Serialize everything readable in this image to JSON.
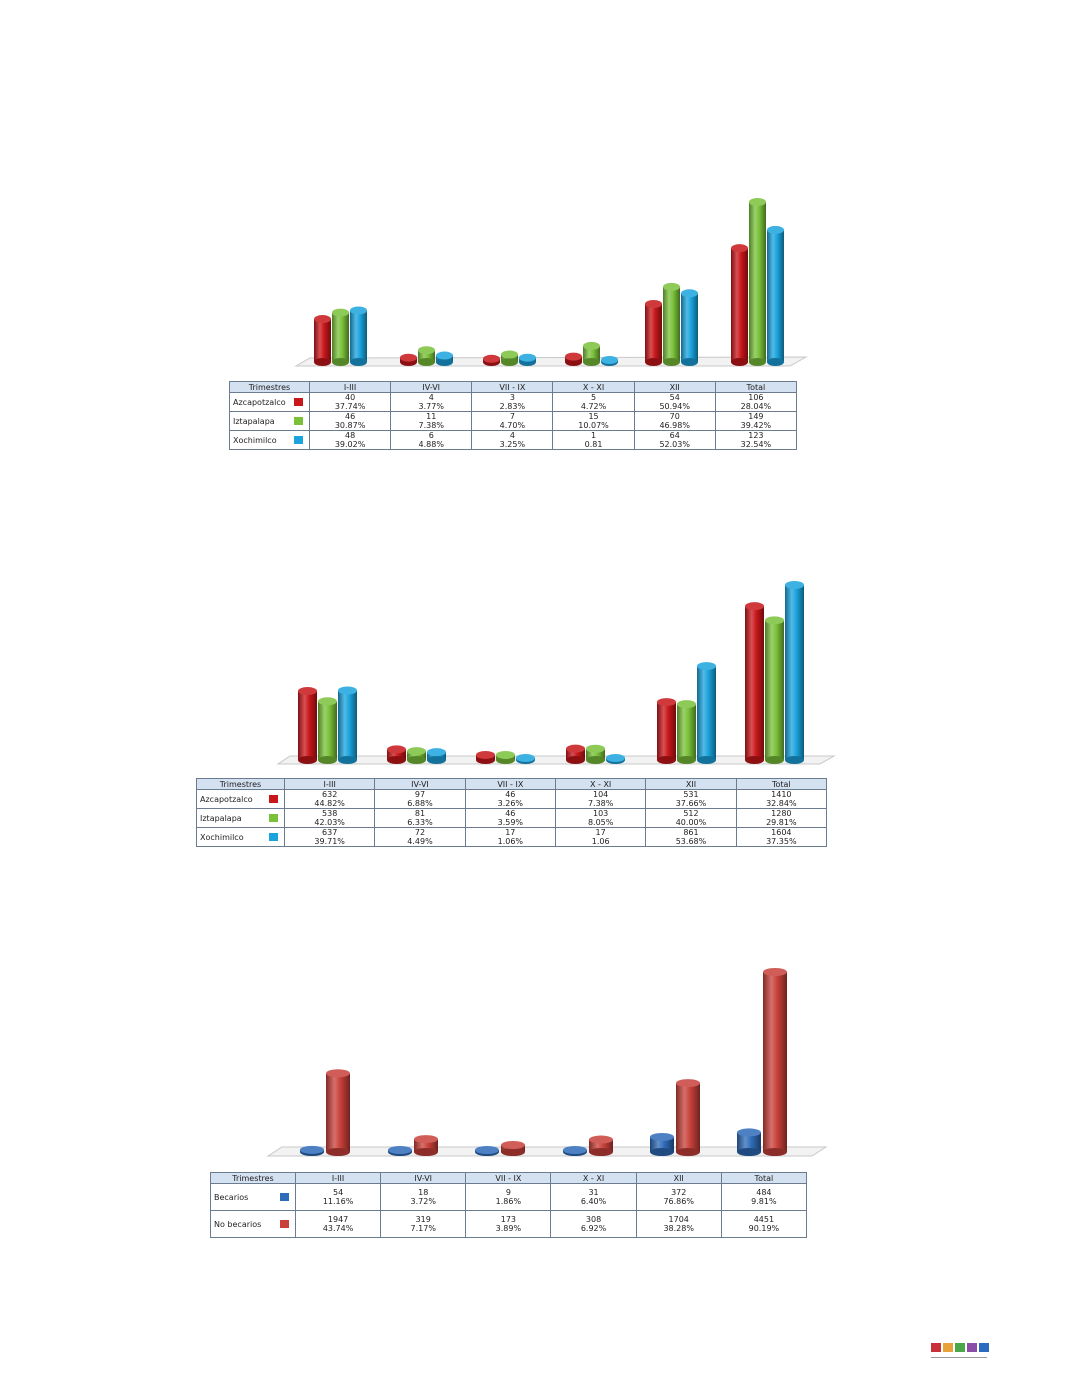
{
  "chart_data": [
    {
      "type": "bar",
      "categories": [
        "I-III",
        "IV-VI",
        "VII - IX",
        "X - XI",
        "XII",
        "Total"
      ],
      "table_header": "Trimestres",
      "series": [
        {
          "name": "Azcapotzalco",
          "color": "#c8161a",
          "values": [
            40,
            4,
            3,
            5,
            54,
            106
          ],
          "labels": [
            "37.74%",
            "3.77%",
            "2.83%",
            "4.72%",
            "50.94%",
            "28.04%"
          ]
        },
        {
          "name": "Iztapalapa",
          "color": "#7ac13a",
          "values": [
            46,
            11,
            7,
            15,
            70,
            149
          ],
          "labels": [
            "30.87%",
            "7.38%",
            "4.70%",
            "10.07%",
            "46.98%",
            "39.42%"
          ]
        },
        {
          "name": "Xochimilco",
          "color": "#1aa3dd",
          "values": [
            48,
            6,
            4,
            1,
            64,
            123
          ],
          "labels": [
            "39.02%",
            "4.88%",
            "3.25%",
            "0.81",
            "52.03%",
            "32.54%"
          ]
        }
      ]
    },
    {
      "type": "bar",
      "categories": [
        "I-III",
        "IV-VI",
        "VII - IX",
        "X - XI",
        "XII",
        "Total"
      ],
      "table_header": "Trimestres",
      "series": [
        {
          "name": "Azcapotzalco",
          "color": "#c8161a",
          "values": [
            632,
            97,
            46,
            104,
            531,
            1410
          ],
          "labels": [
            "44.82%",
            "6.88%",
            "3.26%",
            "7.38%",
            "37.66%",
            "32.84%"
          ]
        },
        {
          "name": "Iztapalapa",
          "color": "#7ac13a",
          "values": [
            538,
            81,
            46,
            103,
            512,
            1280
          ],
          "labels": [
            "42.03%",
            "6.33%",
            "3.59%",
            "8.05%",
            "40.00%",
            "29.81%"
          ]
        },
        {
          "name": "Xochimilco",
          "color": "#1aa3dd",
          "values": [
            637,
            72,
            17,
            17,
            861,
            1604
          ],
          "labels": [
            "39.71%",
            "4.49%",
            "1.06%",
            "1.06",
            "53.68%",
            "37.35%"
          ]
        }
      ]
    },
    {
      "type": "bar",
      "categories": [
        "I-III",
        "IV-VI",
        "VII - IX",
        "X - XI",
        "XII",
        "Total"
      ],
      "table_header": "Trimestres",
      "series": [
        {
          "name": "Becarios",
          "color": "#2e6bb8",
          "values": [
            54,
            18,
            9,
            31,
            372,
            484
          ],
          "labels": [
            "11.16%",
            "3.72%",
            "1.86%",
            "6.40%",
            "76.86%",
            "9.81%"
          ]
        },
        {
          "name": "No becarios",
          "color": "#c8403a",
          "values": [
            1947,
            319,
            173,
            308,
            1704,
            4451
          ],
          "labels": [
            "43.74%",
            "7.17%",
            "3.89%",
            "6.92%",
            "38.28%",
            "90.19%"
          ]
        }
      ]
    }
  ],
  "footer": {
    "squares": [
      "#c8313a",
      "#e8a23a",
      "#4aa84a",
      "#8a4ea8",
      "#2a6bc0"
    ]
  }
}
